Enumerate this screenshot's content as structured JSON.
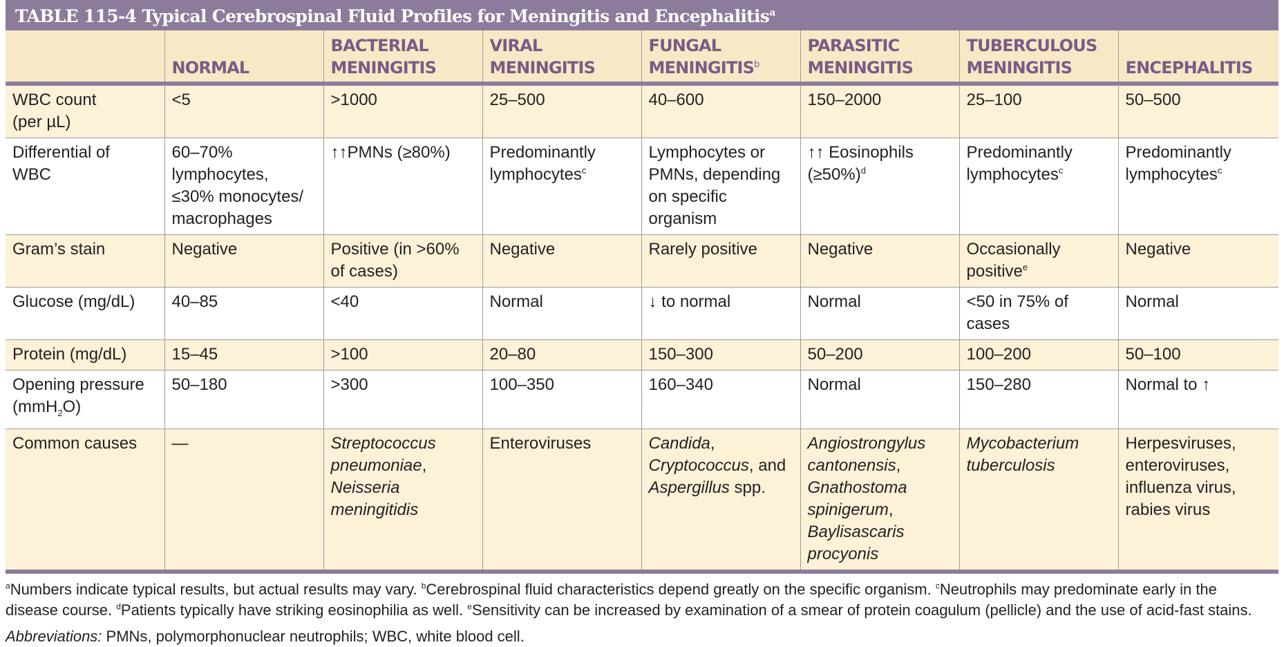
{
  "title": {
    "label": "TABLE 115-4  Typical Cerebrospinal Fluid Profiles for Meningitis and Encephalitis",
    "note_mark": "a"
  },
  "header": {
    "normal": "NORMAL",
    "bacterial": [
      "BACTERIAL",
      "MENINGITIS"
    ],
    "viral": [
      "VIRAL",
      "MENINGITIS"
    ],
    "fungal": [
      "FUNGAL",
      "MENINGITIS"
    ],
    "fungal_mark": "b",
    "parasitic": [
      "PARASITIC",
      "MENINGITIS"
    ],
    "tuberculous": [
      "TUBERCULOUS",
      "MENINGITIS"
    ],
    "encephalitis": "ENCEPHALITIS"
  },
  "rows": {
    "wbc": {
      "label": [
        "WBC count",
        "(per µL)"
      ],
      "values": [
        "<5",
        ">1000",
        "25–500",
        "40–600",
        "150–2000",
        "25–100",
        "50–500"
      ]
    },
    "diff": {
      "label": [
        "Differential of",
        "WBC"
      ],
      "normal": [
        "60–70%",
        "lymphocytes,",
        "≤30% monocytes/",
        "macrophages"
      ],
      "bacterial": "↑↑PMNs (≥80%)",
      "viral": [
        "Predominantly",
        "lymphocytes"
      ],
      "viral_mark": "c",
      "fungal": [
        "Lymphocytes or",
        "PMNs, depending",
        "on specific",
        "organism"
      ],
      "parasitic": [
        "↑↑ Eosinophils",
        "(≥50%)"
      ],
      "parasitic_mark": "d",
      "tuberculous": [
        "Predominantly",
        "lymphocytes"
      ],
      "tuberculous_mark": "c",
      "encephalitis": [
        "Predominantly",
        "lymphocytes"
      ],
      "encephalitis_mark": "c"
    },
    "gram": {
      "label": "Gram’s stain",
      "normal": "Negative",
      "bacterial": [
        "Positive (in >60%",
        "of cases)"
      ],
      "viral": "Negative",
      "fungal": "Rarely positive",
      "parasitic": "Negative",
      "tuberculous": [
        "Occasionally",
        "positive"
      ],
      "tuberculous_mark": "e",
      "encephalitis": "Negative"
    },
    "glucose": {
      "label": "Glucose (mg/dL)",
      "normal": "40–85",
      "bacterial": "<40",
      "viral": "Normal",
      "fungal": "↓ to normal",
      "parasitic": "Normal",
      "tuberculous": [
        "<50 in 75% of",
        "cases"
      ],
      "encephalitis": "Normal"
    },
    "protein": {
      "label": "Protein (mg/dL)",
      "values": [
        "15–45",
        ">100",
        "20–80",
        "150–300",
        "50–200",
        "100–200",
        "50–100"
      ]
    },
    "pressure": {
      "label": [
        "Opening pressure",
        "(mmH",
        "2",
        "O)"
      ],
      "values": [
        "50–180",
        ">300",
        "100–350",
        "160–340",
        "Normal",
        "150–280",
        "Normal to ↑"
      ]
    },
    "causes": {
      "label": "Common causes",
      "normal": "—",
      "bacterial": [
        "Streptococcus",
        "pneumoniae",
        ",",
        "Neisseria",
        "meningitidis"
      ],
      "viral": "Enteroviruses",
      "fungal": [
        "Candida",
        ",",
        "Cryptococcus",
        ", and",
        "Aspergillus",
        " spp."
      ],
      "parasitic": [
        "Angiostrongylus",
        "cantonensis",
        ",",
        "Gnathostoma",
        "spinigerum",
        ",",
        "Baylisascaris",
        "procyonis"
      ],
      "tuberculous": [
        "Mycobacterium",
        "tuberculosis"
      ],
      "encephalitis": [
        "Herpesviruses,",
        "enteroviruses,",
        "influenza virus,",
        "rabies virus"
      ]
    }
  },
  "footnotes": {
    "a_mark": "a",
    "a": "Numbers indicate typical results, but actual results may vary. ",
    "b_mark": "b",
    "b": "Cerebrospinal fluid characteristics depend greatly on the specific organism. ",
    "c_mark": "c",
    "c": "Neutrophils may predominate early in the disease course. ",
    "d_mark": "d",
    "d": "Patients typically have striking eosinophilia as well. ",
    "e_mark": "e",
    "e": "Sensitivity can be increased by examination of a smear of protein coagulum (pellicle) and the use of acid-fast stains."
  },
  "abbreviations": {
    "label": "Abbreviations:",
    "text": " PMNs, polymorphonuclear neutrophils; WBC, white blood cell."
  }
}
